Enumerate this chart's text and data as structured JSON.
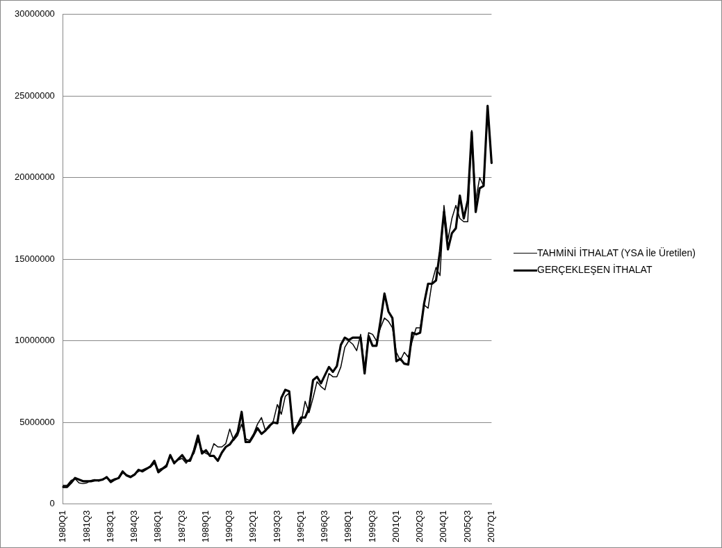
{
  "chart_data": {
    "type": "line",
    "categories": [
      "1980Q1",
      null,
      null,
      null,
      null,
      null,
      "1981Q3",
      null,
      null,
      null,
      null,
      null,
      "1983Q1",
      null,
      null,
      null,
      null,
      null,
      "1984Q3",
      null,
      null,
      null,
      null,
      null,
      "1986Q1",
      null,
      null,
      null,
      null,
      null,
      "1987Q3",
      null,
      null,
      null,
      null,
      null,
      "1989Q1",
      null,
      null,
      null,
      null,
      null,
      "1990Q3",
      null,
      null,
      null,
      null,
      null,
      "1992Q1",
      null,
      null,
      null,
      null,
      null,
      "1993Q3",
      null,
      null,
      null,
      null,
      null,
      "1995Q1",
      null,
      null,
      null,
      null,
      null,
      "1996Q3",
      null,
      null,
      null,
      null,
      null,
      "1998Q1",
      null,
      null,
      null,
      null,
      null,
      "1999Q3",
      null,
      null,
      null,
      null,
      null,
      "2001Q1",
      null,
      null,
      null,
      null,
      null,
      "2002Q3",
      null,
      null,
      null,
      null,
      null,
      "2004Q1",
      null,
      null,
      null,
      null,
      null,
      "2005Q3",
      null,
      null,
      null,
      null,
      null,
      "2007Q1"
    ],
    "series": [
      {
        "name": "TAHMİNİ İTHALAT (YSA İle Üretilen)",
        "color": "#000000",
        "values": [
          1150000,
          1150000,
          1450000,
          1550000,
          1300000,
          1250000,
          1300000,
          1450000,
          1500000,
          1400000,
          1550000,
          1600000,
          1450000,
          1550000,
          1550000,
          1900000,
          1800000,
          1700000,
          1850000,
          2000000,
          2100000,
          2200000,
          2250000,
          2500000,
          2100000,
          2200000,
          2400000,
          2900000,
          2600000,
          2700000,
          2800000,
          2500000,
          2800000,
          3100000,
          3900000,
          3300000,
          3100000,
          3000000,
          3700000,
          3500000,
          3500000,
          3700000,
          4600000,
          3900000,
          4200000,
          4900000,
          4000000,
          3900000,
          4300000,
          4900000,
          5300000,
          4500000,
          4700000,
          5100000,
          6100000,
          5500000,
          6600000,
          6800000,
          4300000,
          4700000,
          5000000,
          6300000,
          5600000,
          6500000,
          7500000,
          7200000,
          7000000,
          8000000,
          7800000,
          7800000,
          8400000,
          9600000,
          10000000,
          9800000,
          9400000,
          10400000,
          8300000,
          10500000,
          10400000,
          10000000,
          10800000,
          11400000,
          11200000,
          10800000,
          9300000,
          8800000,
          9300000,
          9000000,
          10000000,
          10800000,
          10800000,
          12200000,
          12000000,
          13600000,
          14500000,
          14000000,
          18300000,
          16200000,
          17500000,
          18300000,
          17500000,
          17300000,
          17300000,
          22900000,
          18600000,
          20000000,
          19500000,
          24300000,
          21000000
        ]
      },
      {
        "name": "GERÇEKLEŞEN İTHALAT",
        "color": "#000000",
        "values": [
          1050000,
          1050000,
          1300000,
          1600000,
          1500000,
          1400000,
          1400000,
          1400000,
          1450000,
          1450000,
          1500000,
          1650000,
          1350000,
          1500000,
          1600000,
          2000000,
          1750000,
          1650000,
          1800000,
          2100000,
          2000000,
          2150000,
          2300000,
          2650000,
          1950000,
          2150000,
          2300000,
          3000000,
          2500000,
          2750000,
          3000000,
          2650000,
          2650000,
          3300000,
          4200000,
          3100000,
          3300000,
          2950000,
          2950000,
          2650000,
          3150000,
          3500000,
          3650000,
          4000000,
          4400000,
          5650000,
          3800000,
          3800000,
          4200000,
          4650000,
          4300000,
          4500000,
          4800000,
          5000000,
          4950000,
          6500000,
          7000000,
          6900000,
          4400000,
          4800000,
          5300000,
          5300000,
          5900000,
          7600000,
          7800000,
          7400000,
          7900000,
          8400000,
          8100000,
          8450000,
          9750000,
          10200000,
          10050000,
          10200000,
          10200000,
          10200000,
          8000000,
          10300000,
          9700000,
          9700000,
          11200000,
          12900000,
          11800000,
          11400000,
          8750000,
          8900000,
          8600000,
          8550000,
          10500000,
          10400000,
          10500000,
          12300000,
          13500000,
          13500000,
          13700000,
          15500000,
          17900000,
          15600000,
          16600000,
          16900000,
          18900000,
          17500000,
          18600000,
          22800000,
          17900000,
          19350000,
          19500000,
          24400000,
          20900000
        ]
      }
    ],
    "ylim": [
      0,
      30000000
    ],
    "yticks": [
      0,
      5000000,
      10000000,
      15000000,
      20000000,
      25000000,
      30000000
    ],
    "grid": "y",
    "legend": "right",
    "marker": "none",
    "line_style": "solid"
  }
}
